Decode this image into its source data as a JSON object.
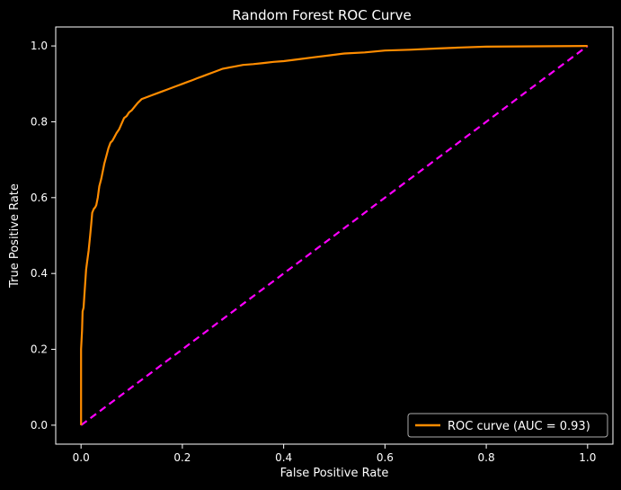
{
  "chart_data": {
    "type": "line",
    "title": "Random Forest ROC Curve",
    "xlabel": "False Positive Rate",
    "ylabel": "True Positive Rate",
    "xlim": [
      -0.05,
      1.05
    ],
    "ylim": [
      -0.05,
      1.05
    ],
    "x_ticks": [
      0.0,
      0.2,
      0.4,
      0.6,
      0.8,
      1.0
    ],
    "x_tick_labels": [
      "0.0",
      "0.2",
      "0.4",
      "0.6",
      "0.8",
      "1.0"
    ],
    "y_ticks": [
      0.0,
      0.2,
      0.4,
      0.6,
      0.8,
      1.0
    ],
    "y_tick_labels": [
      "0.0",
      "0.2",
      "0.4",
      "0.6",
      "0.8",
      "1.0"
    ],
    "grid": false,
    "legend_position": "lower-right",
    "colors": {
      "background": "#000000",
      "roc": "#ff8c00",
      "diagonal": "#ff00ff",
      "text": "#ffffff"
    },
    "series": [
      {
        "name": "ROC curve (AUC = 0.93)",
        "style": "solid",
        "x": [
          0.0,
          0.0,
          0.002,
          0.003,
          0.005,
          0.007,
          0.01,
          0.012,
          0.015,
          0.018,
          0.02,
          0.022,
          0.025,
          0.028,
          0.03,
          0.033,
          0.036,
          0.04,
          0.043,
          0.046,
          0.05,
          0.054,
          0.058,
          0.062,
          0.066,
          0.07,
          0.075,
          0.08,
          0.085,
          0.09,
          0.095,
          0.1,
          0.106,
          0.112,
          0.12,
          0.13,
          0.14,
          0.15,
          0.16,
          0.17,
          0.18,
          0.19,
          0.2,
          0.21,
          0.22,
          0.23,
          0.24,
          0.25,
          0.26,
          0.27,
          0.28,
          0.3,
          0.32,
          0.34,
          0.36,
          0.38,
          0.4,
          0.43,
          0.46,
          0.49,
          0.52,
          0.56,
          0.6,
          0.65,
          0.7,
          0.75,
          0.8,
          0.9,
          1.0
        ],
        "y": [
          0.0,
          0.2,
          0.25,
          0.3,
          0.31,
          0.35,
          0.41,
          0.43,
          0.46,
          0.5,
          0.53,
          0.56,
          0.57,
          0.575,
          0.58,
          0.6,
          0.63,
          0.65,
          0.67,
          0.69,
          0.71,
          0.73,
          0.745,
          0.75,
          0.76,
          0.77,
          0.78,
          0.795,
          0.81,
          0.815,
          0.825,
          0.83,
          0.84,
          0.85,
          0.86,
          0.865,
          0.87,
          0.875,
          0.88,
          0.885,
          0.89,
          0.895,
          0.9,
          0.905,
          0.91,
          0.915,
          0.92,
          0.925,
          0.93,
          0.935,
          0.94,
          0.945,
          0.95,
          0.952,
          0.955,
          0.958,
          0.96,
          0.965,
          0.97,
          0.975,
          0.98,
          0.983,
          0.988,
          0.99,
          0.993,
          0.996,
          0.998,
          0.999,
          1.0
        ]
      },
      {
        "style": "dashed",
        "x": [
          0.0,
          1.0
        ],
        "y": [
          0.0,
          1.0
        ]
      }
    ]
  }
}
